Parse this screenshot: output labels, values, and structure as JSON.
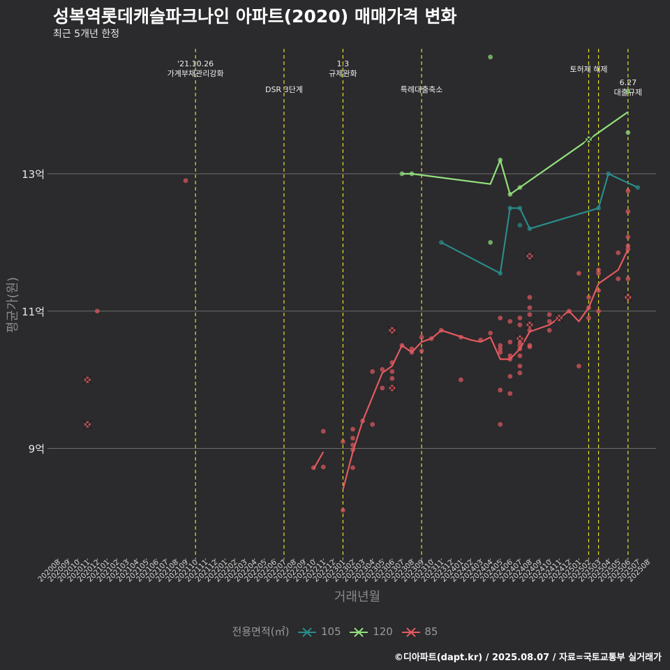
{
  "title": "성복역롯데캐슬파크나인 아파트(2020) 매매가격 변화",
  "subtitle": "최근 5개년 한정",
  "caption": "©디아파트(dapt.kr) / 2025.08.07 / 자료=국토교통부 실거래가",
  "colors": {
    "s105": "#2a8c8a",
    "s120": "#93e07d",
    "s85": "#e35a60",
    "event": "#e3e325",
    "grid": "#6f6f6f",
    "bg": "#2b2a2c"
  },
  "chart_data": {
    "type": "line",
    "xlabel": "거래년월",
    "ylabel": "평균가(원)",
    "x_range": [
      "202008",
      "202508"
    ],
    "y_range": [
      7.4,
      14.9
    ],
    "y_ticks": [
      {
        "value": 9,
        "label": "9억"
      },
      {
        "value": 11,
        "label": "11억"
      },
      {
        "value": 13,
        "label": "13억"
      }
    ],
    "x_ticks": [
      "202008",
      "202009",
      "202010",
      "202011",
      "202012",
      "202101",
      "202102",
      "202103",
      "202104",
      "202105",
      "202106",
      "202107",
      "202108",
      "202109",
      "202110",
      "202111",
      "202112",
      "202201",
      "202202",
      "202203",
      "202204",
      "202205",
      "202206",
      "202207",
      "202208",
      "202209",
      "202210",
      "202211",
      "202212",
      "202301",
      "202302",
      "202303",
      "202304",
      "202305",
      "202306",
      "202307",
      "202308",
      "202309",
      "202310",
      "202311",
      "202312",
      "202401",
      "202402",
      "202403",
      "202404",
      "202405",
      "202406",
      "202407",
      "202408",
      "202409",
      "202410",
      "202411",
      "202412",
      "202501",
      "202502",
      "202503",
      "202504",
      "202505",
      "202506",
      "202507",
      "202508"
    ],
    "events": [
      {
        "month": "202110",
        "label": "'21.10.26\n가계부채관리강화",
        "row": 1
      },
      {
        "month": "202207",
        "label": "DSR 3단계",
        "row": 2
      },
      {
        "month": "202301",
        "label": "1.3\n규제완화",
        "row": 1
      },
      {
        "month": "202309",
        "label": "특례대출축소",
        "row": 2
      },
      {
        "month": "202502",
        "label": "토허제 해제",
        "row": 0
      },
      {
        "month": "202503",
        "label": "",
        "row": 0
      },
      {
        "month": "202506",
        "label": "6.27\n대출규제",
        "row": 3
      }
    ],
    "legend_title": "전용면적(㎡)",
    "series": [
      {
        "name": "105",
        "color_key": "s105",
        "line": [
          [
            "202311",
            12.0
          ],
          [
            "202405",
            11.55
          ],
          [
            "202406",
            12.5
          ],
          [
            "202407",
            12.5
          ],
          [
            "202408",
            12.2
          ],
          [
            "202503",
            12.5
          ],
          [
            "202504",
            13.0
          ],
          [
            "202507",
            12.8
          ]
        ],
        "points": [
          [
            "202311",
            12.0
          ],
          [
            "202405",
            11.55
          ],
          [
            "202406",
            12.5
          ],
          [
            "202407",
            12.5
          ],
          [
            "202407",
            12.25
          ],
          [
            "202408",
            12.2
          ],
          [
            "202503",
            12.5
          ],
          [
            "202504",
            13.0
          ],
          [
            "202507",
            12.8
          ]
        ],
        "cancelled": []
      },
      {
        "name": "120",
        "color_key": "s120",
        "line": [
          [
            "202307",
            13.0
          ],
          [
            "202308",
            13.0
          ],
          [
            "202404",
            12.85
          ],
          [
            "202405",
            13.2
          ],
          [
            "202406",
            12.7
          ],
          [
            "202407",
            12.8
          ],
          [
            "202502",
            13.5
          ],
          [
            "202506",
            13.9
          ]
        ],
        "points": [
          [
            "202307",
            13.0
          ],
          [
            "202308",
            13.0
          ],
          [
            "202404",
            14.7
          ],
          [
            "202404",
            12.0
          ],
          [
            "202405",
            13.2
          ],
          [
            "202406",
            12.7
          ],
          [
            "202407",
            12.8
          ],
          [
            "202502",
            13.5
          ],
          [
            "202506",
            14.2
          ],
          [
            "202506",
            13.6
          ]
        ],
        "cancelled": [
          [
            "202502",
            13.5
          ]
        ]
      },
      {
        "name": "85",
        "color_key": "s85",
        "line": [
          [
            "202210",
            8.7
          ],
          [
            "202211",
            8.95
          ],
          [
            "202301",
            8.4
          ],
          [
            "202302",
            8.95
          ],
          [
            "202303",
            9.4
          ],
          [
            "202304",
            9.75
          ],
          [
            "202305",
            10.1
          ],
          [
            "202306",
            10.2
          ],
          [
            "202307",
            10.5
          ],
          [
            "202308",
            10.4
          ],
          [
            "202309",
            10.55
          ],
          [
            "202310",
            10.6
          ],
          [
            "202311",
            10.72
          ],
          [
            "202402",
            10.58
          ],
          [
            "202403",
            10.55
          ],
          [
            "202404",
            10.62
          ],
          [
            "202405",
            10.3
          ],
          [
            "202406",
            10.3
          ],
          [
            "202407",
            10.45
          ],
          [
            "202408",
            10.7
          ],
          [
            "202410",
            10.8
          ],
          [
            "202411",
            10.9
          ],
          [
            "202412",
            11.0
          ],
          [
            "202501",
            10.85
          ],
          [
            "202502",
            11.05
          ],
          [
            "202503",
            11.4
          ],
          [
            "202505",
            11.6
          ],
          [
            "202506",
            11.9
          ]
        ],
        "points": [
          [
            "202011",
            9.35
          ],
          [
            "202011",
            10.0
          ],
          [
            "202012",
            11.0
          ],
          [
            "202109",
            12.9
          ],
          [
            "202210",
            8.72
          ],
          [
            "202211",
            8.73
          ],
          [
            "202211",
            9.25
          ],
          [
            "202301",
            8.1
          ],
          [
            "202301",
            9.1
          ],
          [
            "202302",
            9.05
          ],
          [
            "202302",
            8.98
          ],
          [
            "202302",
            8.72
          ],
          [
            "202302",
            9.15
          ],
          [
            "202302",
            9.28
          ],
          [
            "202303",
            9.4
          ],
          [
            "202304",
            9.35
          ],
          [
            "202304",
            10.12
          ],
          [
            "202305",
            10.15
          ],
          [
            "202305",
            9.88
          ],
          [
            "202306",
            10.72
          ],
          [
            "202306",
            10.25
          ],
          [
            "202306",
            10.12
          ],
          [
            "202306",
            9.88
          ],
          [
            "202306",
            10.02
          ],
          [
            "202307",
            10.5
          ],
          [
            "202308",
            10.4
          ],
          [
            "202308",
            10.45
          ],
          [
            "202309",
            10.62
          ],
          [
            "202309",
            10.42
          ],
          [
            "202310",
            10.6
          ],
          [
            "202311",
            10.72
          ],
          [
            "202401",
            10.0
          ],
          [
            "202401",
            10.62
          ],
          [
            "202403",
            10.58
          ],
          [
            "202404",
            10.68
          ],
          [
            "202405",
            10.5
          ],
          [
            "202405",
            10.4
          ],
          [
            "202405",
            10.45
          ],
          [
            "202405",
            10.9
          ],
          [
            "202405",
            9.35
          ],
          [
            "202405",
            9.85
          ],
          [
            "202406",
            10.05
          ],
          [
            "202406",
            10.55
          ],
          [
            "202406",
            10.85
          ],
          [
            "202406",
            9.8
          ],
          [
            "202406",
            10.35
          ],
          [
            "202406",
            10.3
          ],
          [
            "202407",
            10.45
          ],
          [
            "202407",
            10.5
          ],
          [
            "202407",
            10.55
          ],
          [
            "202407",
            10.8
          ],
          [
            "202407",
            10.9
          ],
          [
            "202407",
            10.6
          ],
          [
            "202407",
            10.35
          ],
          [
            "202407",
            10.2
          ],
          [
            "202407",
            10.1
          ],
          [
            "202408",
            11.8
          ],
          [
            "202408",
            11.2
          ],
          [
            "202408",
            11.05
          ],
          [
            "202408",
            10.95
          ],
          [
            "202408",
            10.8
          ],
          [
            "202408",
            10.72
          ],
          [
            "202408",
            10.5
          ],
          [
            "202408",
            10.48
          ],
          [
            "202410",
            10.95
          ],
          [
            "202410",
            10.85
          ],
          [
            "202410",
            10.72
          ],
          [
            "202411",
            10.9
          ],
          [
            "202412",
            11.0
          ],
          [
            "202501",
            10.2
          ],
          [
            "202501",
            11.55
          ],
          [
            "202502",
            11.2
          ],
          [
            "202502",
            10.9
          ],
          [
            "202502",
            11.05
          ],
          [
            "202503",
            11.6
          ],
          [
            "202503",
            11.55
          ],
          [
            "202503",
            11.3
          ],
          [
            "202503",
            11.0
          ],
          [
            "202505",
            11.85
          ],
          [
            "202505",
            11.47
          ],
          [
            "202506",
            11.2
          ],
          [
            "202506",
            11.9
          ],
          [
            "202506",
            12.08
          ],
          [
            "202506",
            11.47
          ],
          [
            "202506",
            12.45
          ],
          [
            "202506",
            12.75
          ],
          [
            "202506",
            11.95
          ]
        ],
        "cancelled": [
          [
            "202011",
            9.35
          ],
          [
            "202011",
            10.0
          ],
          [
            "202306",
            10.72
          ],
          [
            "202306",
            9.88
          ],
          [
            "202408",
            11.8
          ],
          [
            "202408",
            10.8
          ],
          [
            "202407",
            10.6
          ],
          [
            "202411",
            10.9
          ],
          [
            "202506",
            11.2
          ]
        ]
      }
    ]
  }
}
